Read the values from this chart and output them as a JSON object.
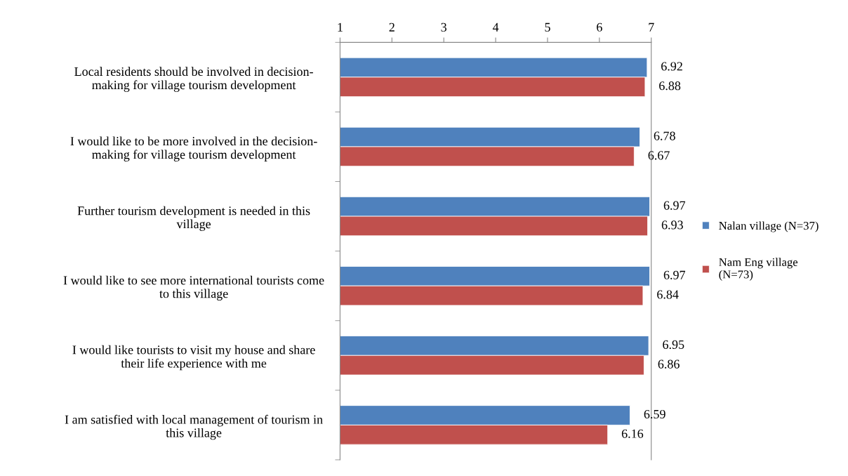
{
  "chart_data": {
    "type": "bar",
    "orientation": "horizontal",
    "categories": [
      "Local residents should be involved in decision-\nmaking for village tourism development",
      "I would like to be more involved in the decision-\nmaking for village tourism development",
      "Further tourism development is needed in this\nvillage",
      "I would like to see more international tourists come\nto this village",
      "I would like tourists to visit my house and share\ntheir life experience with me",
      "I am satisfied with local management of tourism in\nthis village"
    ],
    "series": [
      {
        "name": "Nalan village (N=37)",
        "color": "#4f81bd",
        "values": [
          6.92,
          6.78,
          6.97,
          6.97,
          6.95,
          6.59
        ]
      },
      {
        "name": "Nam Eng village\n(N=73)",
        "color": "#c0504d",
        "values": [
          6.88,
          6.67,
          6.93,
          6.84,
          6.86,
          6.16
        ]
      }
    ],
    "xlim": [
      1,
      7
    ],
    "xticks": [
      1,
      2,
      3,
      4,
      5,
      6,
      7
    ],
    "data_labels": true,
    "grid": false,
    "legend": "right"
  }
}
